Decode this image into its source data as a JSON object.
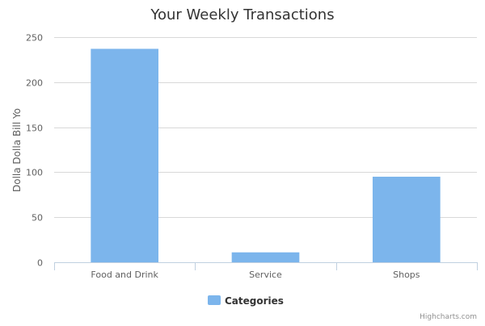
{
  "chart_data": {
    "type": "bar",
    "title": "Your Weekly Transactions",
    "xlabel": "",
    "ylabel": "Dolla Dolla Bill Yo",
    "categories": [
      "Food and Drink",
      "Service",
      "Shops"
    ],
    "series": [
      {
        "name": "Categories",
        "values": [
          237,
          11,
          95
        ],
        "color": "#7cb5ec"
      }
    ],
    "ylim": [
      0,
      250
    ],
    "yticks": [
      0,
      50,
      100,
      150,
      200,
      250
    ],
    "grid": true,
    "legend": "bottom-center"
  },
  "credits": "Highcharts.com"
}
